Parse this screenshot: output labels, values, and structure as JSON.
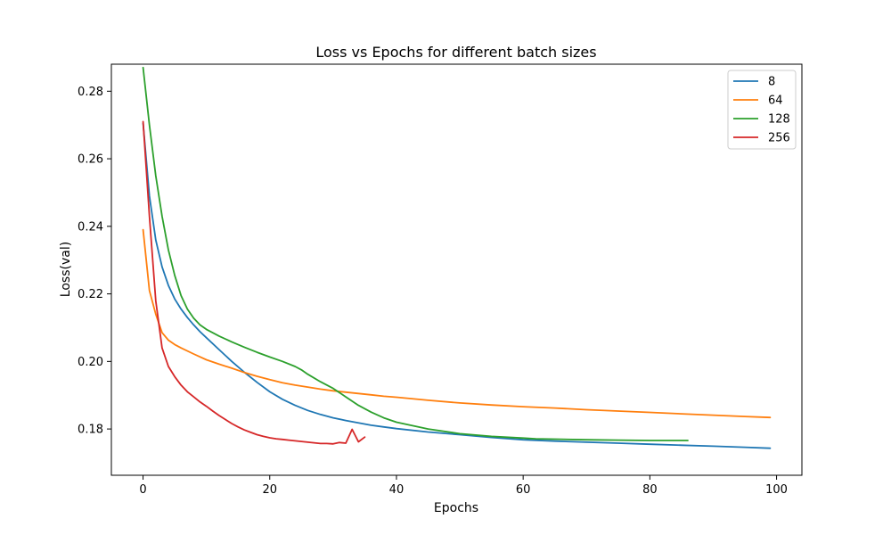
{
  "chart_data": {
    "type": "line",
    "title": "Loss vs Epochs for different batch sizes",
    "xlabel": "Epochs",
    "ylabel": "Loss(val)",
    "xlim": [
      -5,
      104
    ],
    "ylim": [
      0.1663,
      0.288
    ],
    "xticks": [
      0,
      20,
      40,
      60,
      80,
      100
    ],
    "yticks": [
      0.18,
      0.2,
      0.22,
      0.24,
      0.26,
      0.28
    ],
    "xtick_labels": [
      "0",
      "20",
      "40",
      "60",
      "80",
      "100"
    ],
    "ytick_labels": [
      "0.18",
      "0.20",
      "0.22",
      "0.24",
      "0.26",
      "0.28"
    ],
    "grid": false,
    "legend_position": "top-right",
    "series": [
      {
        "name": "8",
        "color": "#1f77b4",
        "x": [
          0,
          1,
          2,
          3,
          4,
          5,
          6,
          7,
          8,
          9,
          10,
          12,
          14,
          16,
          18,
          20,
          22,
          24,
          26,
          28,
          30,
          32,
          34,
          36,
          38,
          40,
          45,
          50,
          55,
          60,
          65,
          70,
          75,
          80,
          85,
          90,
          95,
          99
        ],
        "y": [
          0.2705,
          0.249,
          0.236,
          0.228,
          0.2225,
          0.2185,
          0.2155,
          0.213,
          0.2108,
          0.2088,
          0.207,
          0.2035,
          0.2,
          0.1968,
          0.1938,
          0.191,
          0.1888,
          0.187,
          0.1855,
          0.1843,
          0.1833,
          0.1825,
          0.1818,
          0.1811,
          0.1806,
          0.1801,
          0.1791,
          0.1783,
          0.1775,
          0.1768,
          0.1764,
          0.1761,
          0.1758,
          0.1755,
          0.1752,
          0.1749,
          0.1746,
          0.1743
        ]
      },
      {
        "name": "64",
        "color": "#ff7f0e",
        "x": [
          0,
          1,
          2,
          3,
          4,
          5,
          6,
          8,
          10,
          12,
          14,
          16,
          18,
          20,
          22,
          24,
          26,
          28,
          30,
          32,
          34,
          36,
          38,
          40,
          45,
          50,
          55,
          60,
          65,
          70,
          75,
          80,
          85,
          90,
          95,
          99
        ],
        "y": [
          0.239,
          0.221,
          0.214,
          0.2085,
          0.2063,
          0.205,
          0.204,
          0.2022,
          0.2005,
          0.1992,
          0.198,
          0.1967,
          0.1956,
          0.1946,
          0.1937,
          0.193,
          0.1924,
          0.1918,
          0.1913,
          0.1909,
          0.1905,
          0.1901,
          0.1897,
          0.1894,
          0.1885,
          0.1877,
          0.1871,
          0.1866,
          0.1862,
          0.1857,
          0.1853,
          0.1849,
          0.1845,
          0.1841,
          0.1837,
          0.1834
        ]
      },
      {
        "name": "128",
        "color": "#2ca02c",
        "x": [
          0,
          1,
          2,
          3,
          4,
          5,
          6,
          7,
          8,
          9,
          10,
          12,
          14,
          16,
          18,
          20,
          22,
          24,
          25,
          26,
          28,
          30,
          32,
          34,
          36,
          38,
          40,
          45,
          50,
          55,
          60,
          62,
          65,
          70,
          75,
          80,
          86
        ],
        "y": [
          0.287,
          0.27,
          0.255,
          0.243,
          0.233,
          0.2255,
          0.2195,
          0.2155,
          0.2128,
          0.2108,
          0.2095,
          0.2075,
          0.2058,
          0.2042,
          0.2027,
          0.2013,
          0.2,
          0.1985,
          0.1975,
          0.1962,
          0.194,
          0.192,
          0.1895,
          0.187,
          0.185,
          0.1833,
          0.182,
          0.18,
          0.1786,
          0.1778,
          0.1773,
          0.1771,
          0.177,
          0.1768,
          0.1767,
          0.1766,
          0.1766
        ]
      },
      {
        "name": "256",
        "color": "#d62728",
        "x": [
          0,
          1,
          2,
          3,
          4,
          5,
          6,
          7,
          8,
          9,
          10,
          11,
          12,
          13,
          14,
          15,
          16,
          17,
          18,
          19,
          20,
          21,
          22,
          23,
          24,
          25,
          26,
          27,
          28,
          29,
          30,
          31,
          32,
          33,
          34,
          35
        ],
        "y": [
          0.271,
          0.243,
          0.218,
          0.204,
          0.1985,
          0.1955,
          0.193,
          0.191,
          0.1895,
          0.188,
          0.1867,
          0.1853,
          0.184,
          0.1828,
          0.1816,
          0.1806,
          0.1797,
          0.179,
          0.1783,
          0.1778,
          0.1774,
          0.1771,
          0.1769,
          0.1767,
          0.1765,
          0.1763,
          0.1761,
          0.1759,
          0.1757,
          0.1757,
          0.1756,
          0.176,
          0.1758,
          0.1799,
          0.1762,
          0.1776
        ]
      }
    ]
  }
}
